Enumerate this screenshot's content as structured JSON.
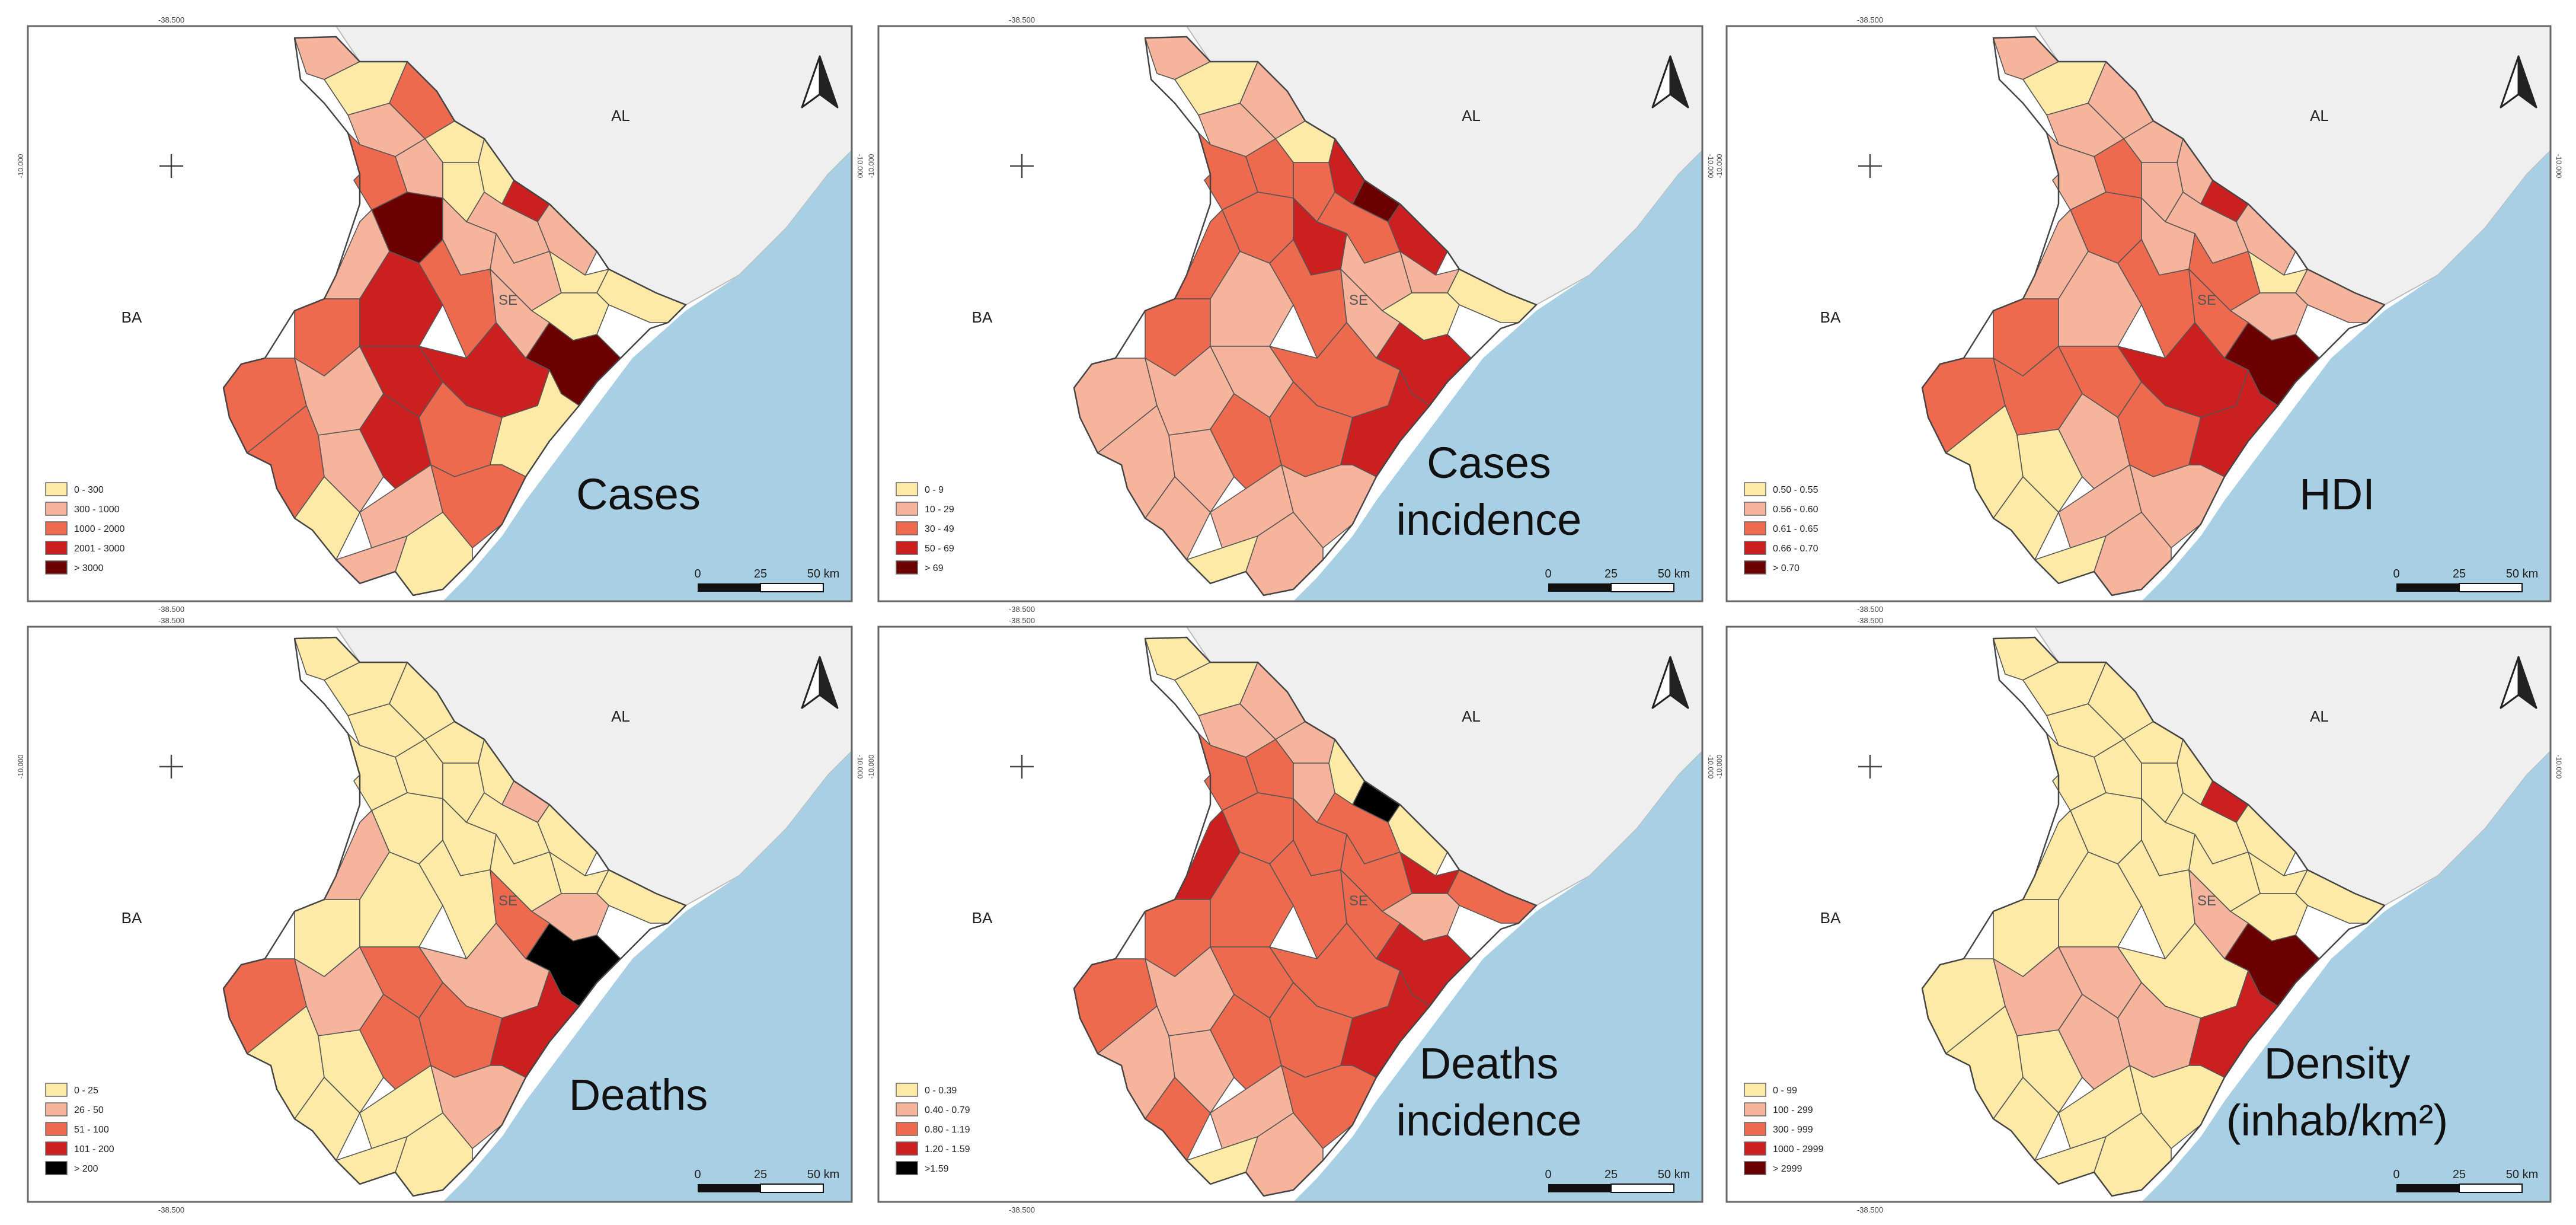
{
  "colors": {
    "sea": "#a8cfe3",
    "land_neighbor": "#efefef",
    "frame": "#666666",
    "border": "#555555"
  },
  "shared": {
    "neighbor_al": "AL",
    "neighbor_ba": "BA",
    "state_label": "SE",
    "longitude_label": "-38.500",
    "latitude_label": "-10.000",
    "scale_labels": [
      "0",
      "25",
      "50 km"
    ]
  },
  "panels": [
    {
      "title": [
        "Cases"
      ],
      "legend": [
        "0 - 300",
        "300 - 1000",
        "1000 - 2000",
        "2001 - 3000",
        "> 3000"
      ],
      "palette": [
        "#fdeaa7",
        "#f7b49c",
        "#ee6a4f",
        "#cc1f1f",
        "#6b0000"
      ]
    },
    {
      "title": [
        "Cases",
        "incidence"
      ],
      "legend": [
        "0 - 9",
        "10 - 29",
        "30 - 49",
        "50 - 69",
        "> 69"
      ],
      "palette": [
        "#fdeaa7",
        "#f7b49c",
        "#ee6a4f",
        "#cc1f1f",
        "#6b0000"
      ]
    },
    {
      "title": [
        "HDI"
      ],
      "legend": [
        "0.50 - 0.55",
        "0.56 - 0.60",
        "0.61 - 0.65",
        "0.66 - 0.70",
        "> 0.70"
      ],
      "palette": [
        "#fdeaa7",
        "#f7b49c",
        "#ee6a4f",
        "#cc1f1f",
        "#6b0000"
      ]
    },
    {
      "title": [
        "Deaths"
      ],
      "legend": [
        "0 - 25",
        "26 - 50",
        "51 - 100",
        "101 - 200",
        "> 200"
      ],
      "palette": [
        "#fdeaa7",
        "#f7b49c",
        "#ee6a4f",
        "#cc1f1f",
        "#000000"
      ]
    },
    {
      "title": [
        "Deaths",
        "incidence"
      ],
      "legend": [
        "0 - 0.39",
        "0.40 - 0.79",
        "0.80 - 1.19",
        "1.20 - 1.59",
        ">1.59"
      ],
      "palette": [
        "#fdeaa7",
        "#f7b49c",
        "#ee6a4f",
        "#cc1f1f",
        "#000000"
      ]
    },
    {
      "title": [
        "Density",
        "(inhab/km²)"
      ],
      "legend": [
        "0 - 99",
        "100 - 299",
        "300 - 999",
        "1000 - 2999",
        "> 2999"
      ],
      "palette": [
        "#fdeaa7",
        "#f7b49c",
        "#ee6a4f",
        "#cc1f1f",
        "#6b0000"
      ]
    }
  ]
}
